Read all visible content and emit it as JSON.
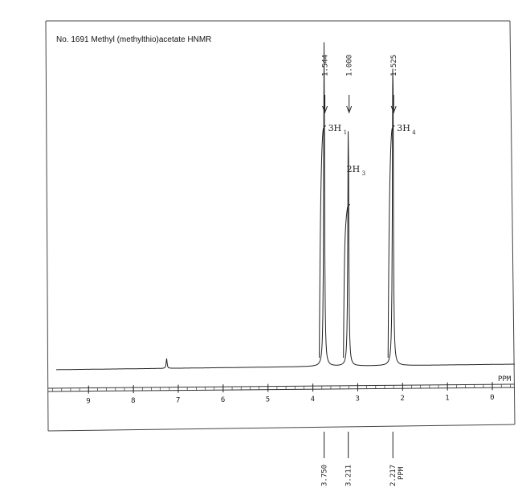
{
  "chart_data": {
    "type": "line",
    "title": "No. 1691  Methyl (methylthio)acetate HNMR",
    "xunit": "PPM",
    "xlim": [
      9.9,
      -0.5
    ],
    "x_ticks": [
      9,
      8,
      7,
      6,
      5,
      4,
      3,
      2,
      1,
      0
    ],
    "peaks": [
      {
        "ppm": 3.75,
        "height": 1.0
      },
      {
        "ppm": 3.211,
        "height": 0.77
      },
      {
        "ppm": 2.217,
        "height": 1.0
      },
      {
        "ppm": 7.26,
        "height": 0.03
      }
    ],
    "integrals": [
      {
        "value": "1.544",
        "ppm": 3.75,
        "label": "3H",
        "sub": "1"
      },
      {
        "value": "1.000",
        "ppm": 3.211,
        "label": "2H",
        "sub": "3"
      },
      {
        "value": "1.525",
        "ppm": 2.217,
        "label": "3H",
        "sub": "4"
      }
    ],
    "peak_labels": [
      "3.750",
      "3.211",
      "2.217"
    ],
    "peak_label_unit": "PPM",
    "grid": false
  }
}
